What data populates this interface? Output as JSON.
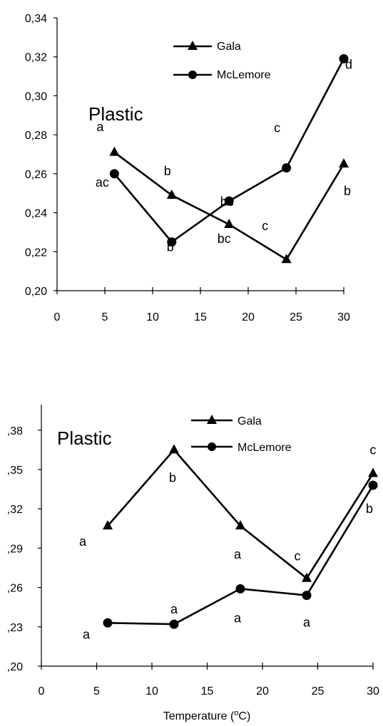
{
  "chart_data": [
    {
      "type": "line",
      "title": "Plastic",
      "xlabel": "",
      "ylabel": "",
      "x_ticks": [
        "0",
        "5",
        "10",
        "15",
        "20",
        "25",
        "30"
      ],
      "y_ticks": [
        "0,20",
        "0,22",
        "0,24",
        "0,26",
        "0,28",
        "0,30",
        "0,32",
        "0,34"
      ],
      "xlim": [
        0,
        30
      ],
      "ylim": [
        0.2,
        0.34
      ],
      "legend_position": "top-right",
      "series": [
        {
          "name": "Gala",
          "marker": "triangle",
          "x": [
            6,
            12,
            18,
            24,
            30
          ],
          "y": [
            0.271,
            0.249,
            0.234,
            0.216,
            0.265
          ],
          "labels": [
            "a",
            "b",
            "bc",
            "c",
            "b"
          ]
        },
        {
          "name": "McLemore",
          "marker": "circle",
          "x": [
            6,
            12,
            18,
            24,
            30
          ],
          "y": [
            0.26,
            0.225,
            0.246,
            0.263,
            0.319
          ],
          "labels": [
            "ac",
            "b",
            "bc",
            "c",
            "d"
          ]
        }
      ]
    },
    {
      "type": "line",
      "title": "Plastic",
      "xlabel": "Temperature (°C)",
      "ylabel": "",
      "x_ticks": [
        "0",
        "5",
        "10",
        "15",
        "20",
        "25",
        "30"
      ],
      "y_ticks": [
        ",20",
        ",23",
        ",26",
        ",29",
        ",32",
        ",35",
        ",38"
      ],
      "xlim": [
        0,
        30
      ],
      "ylim": [
        0.2,
        0.4
      ],
      "legend_position": "top-right",
      "series": [
        {
          "name": "Gala",
          "marker": "triangle",
          "x": [
            6,
            12,
            18,
            24,
            30
          ],
          "y": [
            0.307,
            0.365,
            0.307,
            0.267,
            0.347
          ],
          "labels": [
            "a",
            "b",
            "a",
            "c",
            "c"
          ]
        },
        {
          "name": "McLemore",
          "marker": "circle",
          "x": [
            6,
            12,
            18,
            24,
            30
          ],
          "y": [
            0.233,
            0.232,
            0.259,
            0.254,
            0.338
          ],
          "labels": [
            "a",
            "a",
            "a",
            "a",
            "b"
          ]
        }
      ]
    }
  ]
}
